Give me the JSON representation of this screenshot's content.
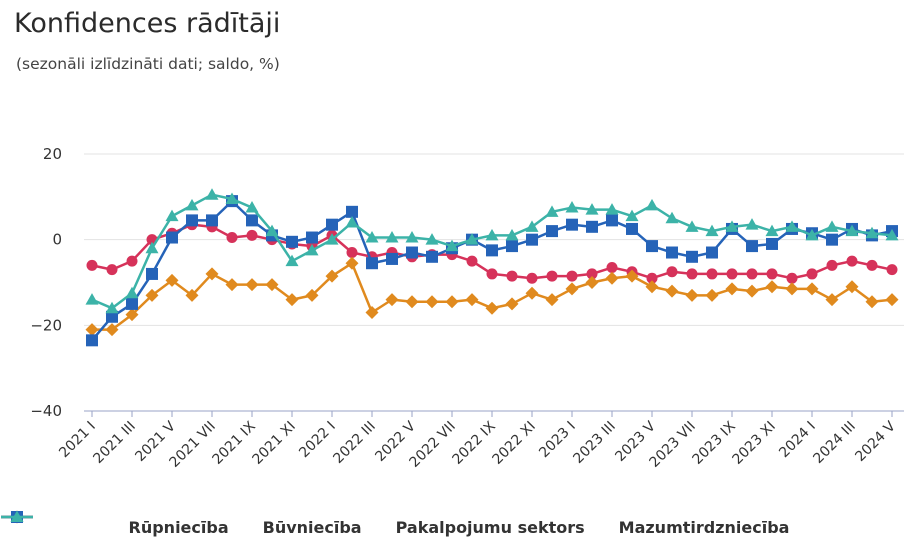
{
  "title": "Konfidences rādītāji",
  "subtitle": "(sezonāli izlīdzināti dati; saldo, %)",
  "chart_data": {
    "type": "line",
    "title": "Konfidences rādītāji",
    "subtitle": "(sezonāli izlīdzināti dati; saldo, %)",
    "ylim": [
      -40,
      20
    ],
    "yticks": [
      -40,
      -20,
      0,
      20
    ],
    "grid": true,
    "legend_position": "bottom",
    "x": [
      "2021 I",
      "2021 II",
      "2021 III",
      "2021 IV",
      "2021 V",
      "2021 VI",
      "2021 VII",
      "2021 VIII",
      "2021 IX",
      "2021 X",
      "2021 XI",
      "2021 XII",
      "2022 I",
      "2022 II",
      "2022 III",
      "2022 IV",
      "2022 V",
      "2022 VI",
      "2022 VII",
      "2022 VIII",
      "2022 IX",
      "2022 X",
      "2022 XI",
      "2022 XII",
      "2023 I",
      "2023 II",
      "2023 III",
      "2023 IV",
      "2023 V",
      "2023 VI",
      "2023 VII",
      "2023 VIII",
      "2023 IX",
      "2023 X",
      "2023 XI",
      "2023 XII",
      "2024 I",
      "2024 II",
      "2024 III",
      "2024 IV",
      "2024 V"
    ],
    "x_tick_labels": [
      "2021 I",
      "2021 III",
      "2021 V",
      "2021 VII",
      "2021 IX",
      "2021 XI",
      "2022 I",
      "2022 III",
      "2022 V",
      "2022 VII",
      "2022 IX",
      "2022 XI",
      "2023 I",
      "2023 III",
      "2023 V",
      "2023 VII",
      "2023 IX",
      "2023 XI",
      "2024 I",
      "2024 III",
      "2024 V"
    ],
    "series": [
      {
        "name": "Rūpniecība",
        "color": "#d6325a",
        "marker": "circle",
        "values": [
          -6,
          -7,
          -5,
          0,
          1.5,
          3.5,
          3,
          0.5,
          1,
          0,
          -1,
          -1.5,
          1,
          -3,
          -4,
          -3,
          -4,
          -3.5,
          -3.5,
          -5,
          -8,
          -8.5,
          -9,
          -8.5,
          -8.5,
          -8,
          -6.5,
          -7.5,
          -9,
          -7.5,
          -8,
          -8,
          -8,
          -8,
          -8,
          -9,
          -8,
          -6,
          -5,
          -6,
          -7
        ]
      },
      {
        "name": "Būvniecība",
        "color": "#e08a1e",
        "marker": "diamond",
        "values": [
          -21,
          -21,
          -17.5,
          -13,
          -9.5,
          -13,
          -8,
          -10.5,
          -10.5,
          -10.5,
          -14,
          -13,
          -8.5,
          -5.5,
          -17,
          -14,
          -14.5,
          -14.5,
          -14.5,
          -14,
          -16,
          -15,
          -12.5,
          -14,
          -11.5,
          -10,
          -9,
          -8.5,
          -11,
          -12,
          -13,
          -13,
          -11.5,
          -12,
          -11,
          -11.5,
          -11.5,
          -14,
          -11,
          -14.5,
          -14
        ]
      },
      {
        "name": "Pakalpojumu sektors",
        "color": "#2563b8",
        "marker": "square",
        "values": [
          -23.5,
          -18,
          -15,
          -8,
          0.5,
          4.5,
          4.5,
          9,
          4.5,
          1,
          -0.5,
          0.5,
          3.5,
          6.5,
          -5.5,
          -4.5,
          -3,
          -4,
          -2,
          0,
          -2.5,
          -1.5,
          0,
          2,
          3.5,
          3,
          4.5,
          2.5,
          -1.5,
          -3,
          -4,
          -3,
          2.5,
          -1.5,
          -1,
          2.5,
          1.5,
          0,
          2.5,
          1,
          2
        ]
      },
      {
        "name": "Mazumtirdzniecība",
        "color": "#3cb3a8",
        "marker": "triangle",
        "values": [
          -14,
          -16,
          -12.5,
          -2,
          5.5,
          8,
          10.5,
          9.5,
          7.5,
          2,
          -5,
          -2.5,
          0,
          4,
          0.5,
          0.5,
          0.5,
          0,
          -1.5,
          0,
          1,
          1,
          3,
          6.5,
          7.5,
          7,
          7,
          5.5,
          8,
          5,
          3,
          2,
          3,
          3.5,
          2,
          3,
          1,
          3,
          2,
          1.5,
          1
        ]
      }
    ]
  }
}
